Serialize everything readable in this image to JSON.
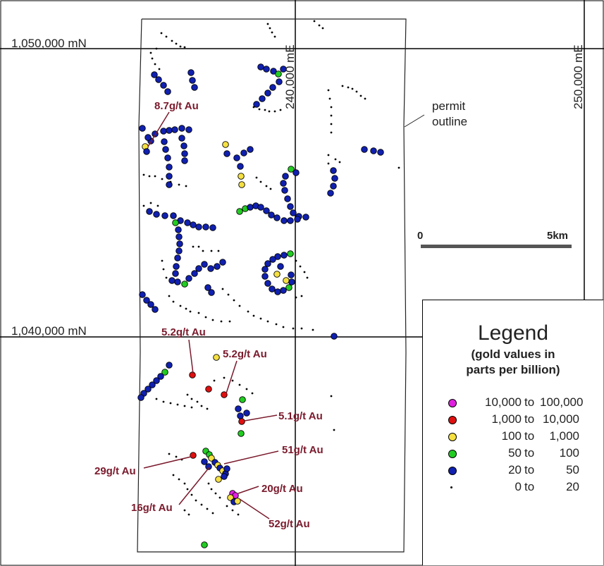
{
  "grid": {
    "northing_upper": "1,050,000 mN",
    "northing_lower": "1,040,000 mN",
    "easting_left": "240,000 mE",
    "easting_right": "250,000 mE"
  },
  "annotations": {
    "permit_outline": "permit\noutline"
  },
  "scale_bar": {
    "start": "0",
    "end": "5km"
  },
  "assays": [
    {
      "id": "a1",
      "label": "8.7g/t Au"
    },
    {
      "id": "a2",
      "label": "5.2g/t Au"
    },
    {
      "id": "a3",
      "label": "5.2g/t Au"
    },
    {
      "id": "a4",
      "label": "5.1g/t Au"
    },
    {
      "id": "a5",
      "label": "51g/t Au"
    },
    {
      "id": "a6",
      "label": "29g/t Au"
    },
    {
      "id": "a7",
      "label": "20g/t Au"
    },
    {
      "id": "a8",
      "label": "16g/t Au"
    },
    {
      "id": "a9",
      "label": "52g/t Au"
    }
  ],
  "legend": {
    "title": "Legend",
    "subtitle": "(gold values in\nparts per billion)",
    "classes": [
      {
        "from": "10,000",
        "to": "to",
        "upper": "100,000",
        "color": "#e020e0",
        "symbol": "circle"
      },
      {
        "from": "1,000",
        "to": "to",
        "upper": "10,000",
        "color": "#e01010",
        "symbol": "circle"
      },
      {
        "from": "100",
        "to": "to",
        "upper": "1,000",
        "color": "#f5e042",
        "symbol": "circle"
      },
      {
        "from": "50",
        "to": "to",
        "upper": "100",
        "color": "#22cc22",
        "symbol": "circle"
      },
      {
        "from": "20",
        "to": "to",
        "upper": "50",
        "color": "#1020b0",
        "symbol": "circle"
      },
      {
        "from": "0",
        "to": "to",
        "upper": "20",
        "color": "#000000",
        "symbol": "dot"
      }
    ]
  },
  "colors": {
    "assay_label": "#7a1a2c",
    "grid_line": "#000000",
    "scale_bar": "#555555"
  }
}
